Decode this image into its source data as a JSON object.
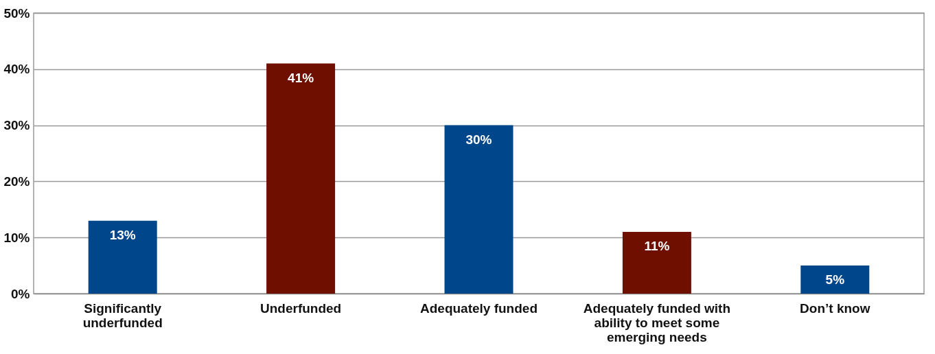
{
  "chart_data": {
    "type": "bar",
    "categories": [
      "Significantly underfunded",
      "Underfunded",
      "Adequately funded",
      "Adequately funded with ability to meet some emerging needs",
      "Don’t know"
    ],
    "values": [
      13,
      41,
      30,
      11,
      5
    ],
    "colors": [
      "#00468b",
      "#6e0f00",
      "#00468b",
      "#6e0f00",
      "#00468b"
    ],
    "value_labels": [
      "13%",
      "41%",
      "30%",
      "11%",
      "5%"
    ],
    "ylim": [
      0,
      50
    ],
    "yticks": [
      {
        "value": 0,
        "label": "0%"
      },
      {
        "value": 10,
        "label": "10%"
      },
      {
        "value": 20,
        "label": "20%"
      },
      {
        "value": 30,
        "label": "30%"
      },
      {
        "value": 40,
        "label": "40%"
      },
      {
        "value": 50,
        "label": "50%"
      }
    ],
    "grid": "y"
  }
}
